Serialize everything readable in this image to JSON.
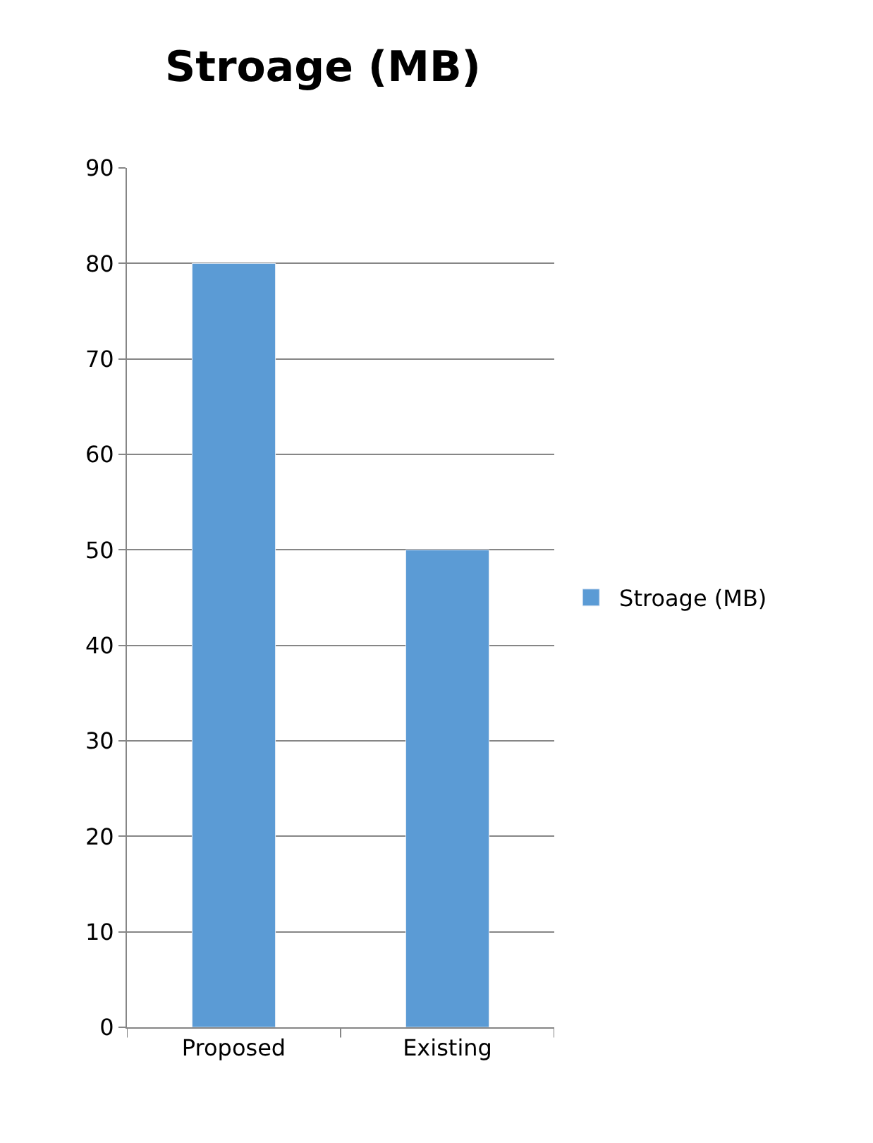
{
  "chart_data": {
    "type": "bar",
    "title": "Stroage (MB)",
    "categories": [
      "Proposed",
      "Existing"
    ],
    "series": [
      {
        "name": "Stroage (MB)",
        "color": "#5b9bd5",
        "values": [
          80,
          50
        ]
      }
    ],
    "ylim": [
      0,
      90
    ],
    "yticks": [
      0,
      10,
      20,
      30,
      40,
      50,
      60,
      70,
      80,
      90
    ],
    "grid": "y",
    "legend": "right"
  }
}
